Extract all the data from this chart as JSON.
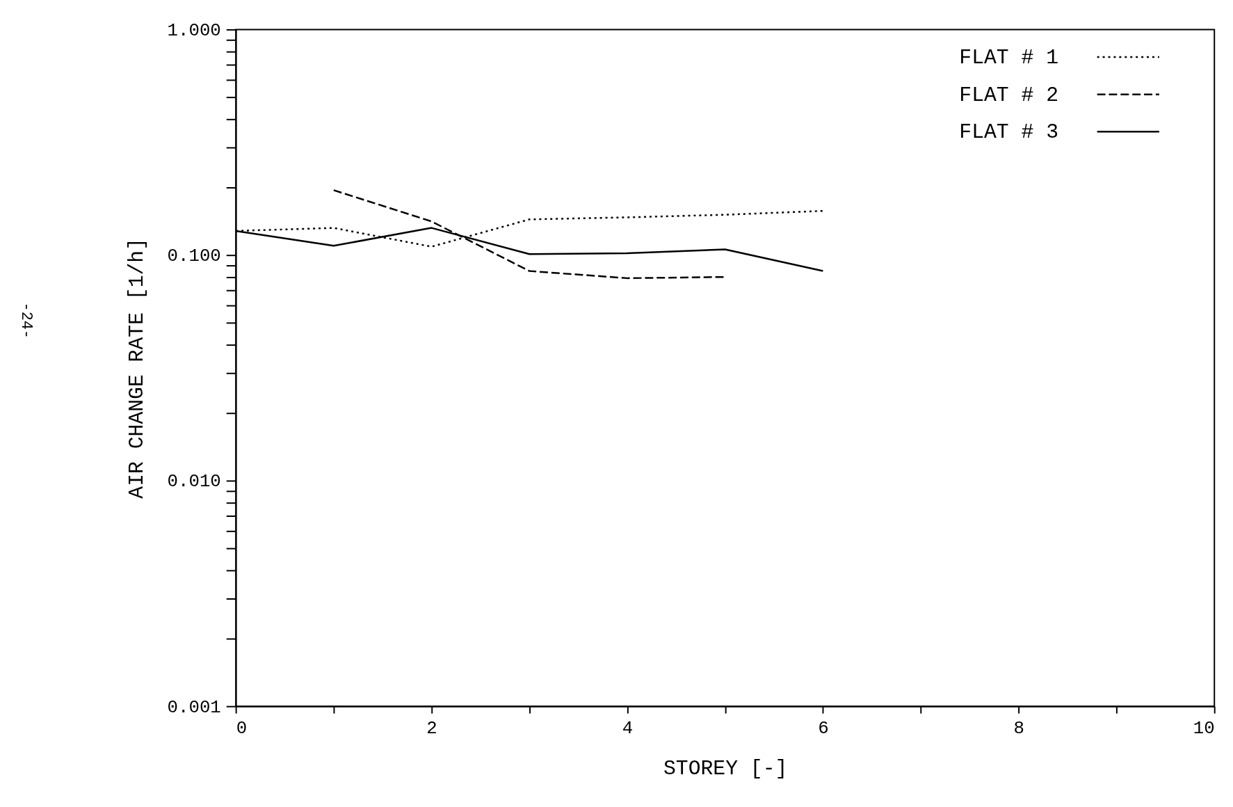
{
  "chart_data": {
    "type": "line",
    "xlabel": "STOREY [-]",
    "ylabel": "AIR CHANGE RATE [1/h]",
    "annotations": [
      "-24-"
    ],
    "log": "y",
    "grid": false,
    "legend": "top right",
    "marker": "none",
    "xlim": [
      0,
      10
    ],
    "xticks": [
      0,
      {
        "value": 1,
        "label": null
      },
      2,
      {
        "value": 3,
        "label": null
      },
      4,
      {
        "value": 5,
        "label": null
      },
      6,
      {
        "value": 7,
        "label": null
      },
      8,
      {
        "value": 9,
        "label": null
      },
      10
    ],
    "ylim": [
      0.001,
      1
    ],
    "yticks": [
      {
        "value": 0.001,
        "label": "0.001"
      },
      {
        "value": 0.002,
        "label": null
      },
      {
        "value": 0.003,
        "label": null
      },
      {
        "value": 0.004,
        "label": null
      },
      {
        "value": 0.005,
        "label": null
      },
      {
        "value": 0.006,
        "label": null
      },
      {
        "value": 0.007,
        "label": null
      },
      {
        "value": 0.008,
        "label": null
      },
      {
        "value": 0.009,
        "label": null
      },
      {
        "value": 0.01,
        "label": "0.010"
      },
      {
        "value": 0.02,
        "label": null
      },
      {
        "value": 0.03,
        "label": null
      },
      {
        "value": 0.04,
        "label": null
      },
      {
        "value": 0.05,
        "label": null
      },
      {
        "value": 0.06,
        "label": null
      },
      {
        "value": 0.07,
        "label": null
      },
      {
        "value": 0.08,
        "label": null
      },
      {
        "value": 0.09,
        "label": null
      },
      {
        "value": 0.1,
        "label": "0.100"
      },
      {
        "value": 0.2,
        "label": null
      },
      {
        "value": 0.3,
        "label": null
      },
      {
        "value": 0.4,
        "label": null
      },
      {
        "value": 0.5,
        "label": null
      },
      {
        "value": 0.6,
        "label": null
      },
      {
        "value": 0.7,
        "label": null
      },
      {
        "value": 0.8,
        "label": null
      },
      {
        "value": 0.9,
        "label": null
      },
      {
        "value": 1,
        "label": "1.000"
      }
    ],
    "series": [
      {
        "name": "FLAT # 1",
        "color": "#000000",
        "line_style": "dotted",
        "x": [
          0,
          1,
          2,
          3,
          4,
          5,
          6
        ],
        "values": [
          0.128,
          0.132,
          0.109,
          0.144,
          0.147,
          0.151,
          0.157
        ]
      },
      {
        "name": "FLAT # 2",
        "color": "#000000",
        "line_style": "dashed",
        "x": [
          1,
          2,
          3,
          4,
          5
        ],
        "values": [
          0.194,
          0.141,
          0.085,
          0.079,
          0.08
        ]
      },
      {
        "name": "FLAT # 3",
        "color": "#000000",
        "line_style": "solid",
        "x": [
          0,
          1,
          2,
          3,
          4,
          5,
          6
        ],
        "values": [
          0.128,
          0.11,
          0.132,
          0.101,
          0.102,
          0.106,
          0.085
        ]
      }
    ]
  }
}
